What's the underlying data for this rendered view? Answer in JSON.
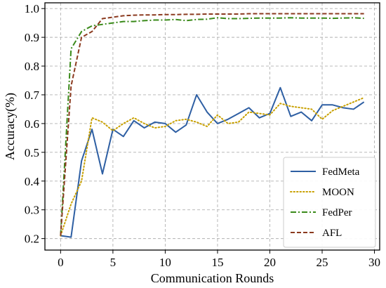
{
  "chart_data": {
    "type": "line",
    "xlabel": "Communication Rounds",
    "ylabel": "Accuracy(%)",
    "xlim": [
      -1.5,
      30.5
    ],
    "ylim": [
      0.16,
      1.02
    ],
    "xticks": [
      0,
      5,
      10,
      15,
      20,
      25,
      30
    ],
    "yticks": [
      0.2,
      0.3,
      0.4,
      0.5,
      0.6,
      0.7,
      0.8,
      0.9,
      1.0
    ],
    "xtick_labels": [
      "0",
      "5",
      "10",
      "15",
      "20",
      "25",
      "30"
    ],
    "ytick_labels": [
      "0.2",
      "0.3",
      "0.4",
      "0.5",
      "0.6",
      "0.7",
      "0.8",
      "0.9",
      "1.0"
    ],
    "grid": true,
    "legend_position": "lower-right",
    "x": [
      0,
      1,
      2,
      3,
      4,
      5,
      6,
      7,
      8,
      9,
      10,
      11,
      12,
      13,
      14,
      15,
      16,
      17,
      18,
      19,
      20,
      21,
      22,
      23,
      24,
      25,
      26,
      27,
      28,
      29
    ],
    "series": [
      {
        "name": "FedMeta",
        "color": "#2e5fa3",
        "style": "solid",
        "values": [
          0.21,
          0.205,
          0.47,
          0.58,
          0.425,
          0.58,
          0.555,
          0.61,
          0.585,
          0.605,
          0.6,
          0.57,
          0.595,
          0.7,
          0.64,
          0.6,
          0.615,
          0.635,
          0.655,
          0.62,
          0.635,
          0.725,
          0.625,
          0.64,
          0.61,
          0.665,
          0.665,
          0.655,
          0.65,
          0.675
        ]
      },
      {
        "name": "MOON",
        "color": "#c8a000",
        "style": "dotted",
        "values": [
          0.21,
          0.32,
          0.4,
          0.62,
          0.605,
          0.575,
          0.6,
          0.62,
          0.6,
          0.585,
          0.59,
          0.61,
          0.615,
          0.605,
          0.59,
          0.63,
          0.6,
          0.605,
          0.64,
          0.635,
          0.63,
          0.67,
          0.66,
          0.655,
          0.65,
          0.615,
          0.645,
          0.66,
          0.675,
          0.69
        ]
      },
      {
        "name": "FedPer",
        "color": "#3a8a1a",
        "style": "dashdot",
        "values": [
          0.21,
          0.86,
          0.92,
          0.94,
          0.945,
          0.95,
          0.955,
          0.955,
          0.958,
          0.96,
          0.96,
          0.962,
          0.958,
          0.962,
          0.963,
          0.968,
          0.965,
          0.965,
          0.966,
          0.967,
          0.967,
          0.967,
          0.968,
          0.967,
          0.967,
          0.967,
          0.966,
          0.967,
          0.968,
          0.966
        ]
      },
      {
        "name": "AFL",
        "color": "#8b3a1f",
        "style": "dashed",
        "values": [
          0.21,
          0.73,
          0.9,
          0.92,
          0.965,
          0.97,
          0.975,
          0.977,
          0.978,
          0.978,
          0.979,
          0.979,
          0.98,
          0.98,
          0.981,
          0.981,
          0.981,
          0.981,
          0.982,
          0.982,
          0.982,
          0.982,
          0.982,
          0.982,
          0.982,
          0.982,
          0.982,
          0.982,
          0.982,
          0.982
        ]
      }
    ]
  }
}
